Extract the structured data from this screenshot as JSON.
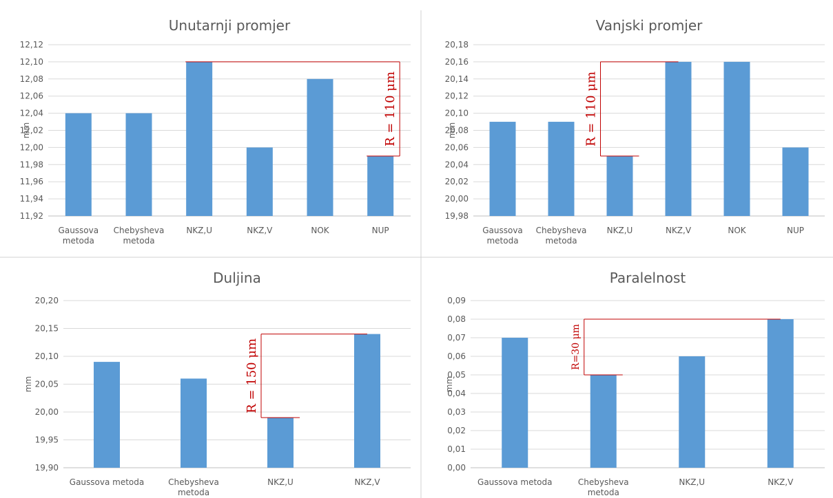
{
  "colors": {
    "bar": "#5b9bd5",
    "grid": "#d9d9d9",
    "text": "#595959",
    "annotation": "#c00000",
    "divider": "#d0d0d0"
  },
  "chart_data": [
    {
      "type": "bar",
      "title": "Unutarnji promjer",
      "ylabel": "mm",
      "xlabel": "",
      "categories": [
        [
          "Gaussova",
          "metoda"
        ],
        [
          "Chebysheva",
          "metoda"
        ],
        [
          "NKZ,U"
        ],
        [
          "NKZ,V"
        ],
        [
          "NOK"
        ],
        [
          "NUP"
        ]
      ],
      "values": [
        12.04,
        12.04,
        12.1,
        12.0,
        12.08,
        11.99
      ],
      "ylim": [
        11.92,
        12.12
      ],
      "ystep": 0.02,
      "decimals": 2,
      "grid": true,
      "annotation": {
        "text": "R = 110 μm",
        "from_category": 2,
        "to_category": 5,
        "high": 12.1,
        "low": 11.99,
        "bracket_category": 5,
        "orientation": "rotated"
      }
    },
    {
      "type": "bar",
      "title": "Vanjski promjer",
      "ylabel": "mm",
      "xlabel": "",
      "categories": [
        [
          "Gaussova",
          "metoda"
        ],
        [
          "Chebysheva",
          "metoda"
        ],
        [
          "NKZ,U"
        ],
        [
          "NKZ,V"
        ],
        [
          "NOK"
        ],
        [
          "NUP"
        ]
      ],
      "values": [
        20.09,
        20.09,
        20.05,
        20.16,
        20.16,
        20.06
      ],
      "ylim": [
        19.98,
        20.18
      ],
      "ystep": 0.02,
      "decimals": 2,
      "grid": true,
      "annotation": {
        "text": "R = 110 μm",
        "from_category": 2,
        "to_category": 3,
        "high": 20.16,
        "low": 20.05,
        "bracket_category": 2,
        "orientation": "rotated"
      }
    },
    {
      "type": "bar",
      "title": "Duljina",
      "ylabel": "mm",
      "xlabel": "",
      "categories": [
        [
          "Gaussova metoda"
        ],
        [
          "Chebysheva",
          "metoda"
        ],
        [
          "NKZ,U"
        ],
        [
          "NKZ,V"
        ]
      ],
      "values": [
        20.09,
        20.06,
        19.99,
        20.14
      ],
      "ylim": [
        19.9,
        20.2
      ],
      "ystep": 0.05,
      "decimals": 2,
      "grid": true,
      "annotation": {
        "text": "R = 150 μm",
        "from_category": 2,
        "to_category": 3,
        "high": 20.14,
        "low": 19.99,
        "bracket_category": 2,
        "orientation": "rotated"
      }
    },
    {
      "type": "bar",
      "title": "Paralelnost",
      "ylabel": "mm",
      "xlabel": "",
      "categories": [
        [
          "Gaussova metoda"
        ],
        [
          "Chebysheva",
          "metoda"
        ],
        [
          "NKZ,U"
        ],
        [
          "NKZ,V"
        ]
      ],
      "values": [
        0.07,
        0.05,
        0.06,
        0.08
      ],
      "ylim": [
        0.0,
        0.09
      ],
      "ystep": 0.01,
      "decimals": 2,
      "grid": true,
      "annotation": {
        "text": "R=30 μm",
        "from_category": 1,
        "to_category": 3,
        "high": 0.08,
        "low": 0.05,
        "bracket_category": 1,
        "orientation": "rotated"
      }
    }
  ]
}
